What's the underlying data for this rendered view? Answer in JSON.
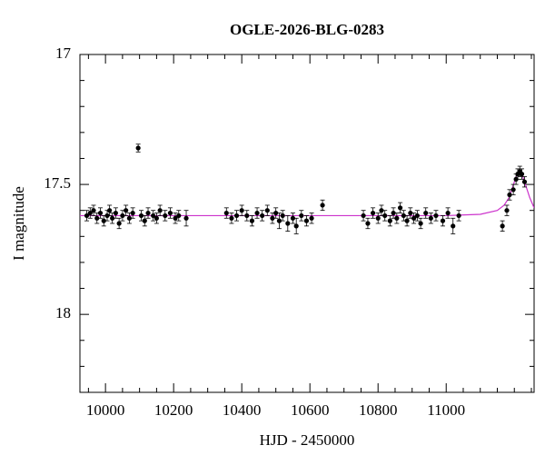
{
  "chart_data": {
    "type": "scatter",
    "title": "OGLE-2026-BLG-0283",
    "xlabel": "HJD - 2450000",
    "ylabel": "I magnitude",
    "xlim": [
      9925,
      11258
    ],
    "ylim": [
      18.3,
      17
    ],
    "xticks": [
      10000,
      10200,
      10400,
      10600,
      10800,
      11000
    ],
    "xticks_minor": [
      9950,
      10050,
      10100,
      10150,
      10250,
      10300,
      10350,
      10450,
      10500,
      10550,
      10650,
      10700,
      10750,
      10850,
      10900,
      10950,
      11050,
      11100,
      11150,
      11200,
      11250
    ],
    "yticks": [
      17,
      17.5,
      18
    ],
    "yticks_minor": [
      17.1,
      17.2,
      17.3,
      17.4,
      17.6,
      17.7,
      17.8,
      17.9,
      18.1,
      18.2
    ],
    "points": {
      "color": "#000000",
      "x": [
        9945,
        9955,
        9965,
        9975,
        9985,
        9995,
        10005,
        10012,
        10020,
        10030,
        10040,
        10050,
        10060,
        10070,
        10080,
        10096,
        10105,
        10115,
        10125,
        10140,
        10150,
        10160,
        10175,
        10190,
        10205,
        10215,
        10237,
        10355,
        10370,
        10385,
        10400,
        10415,
        10430,
        10445,
        10460,
        10475,
        10490,
        10500,
        10510,
        10520,
        10535,
        10550,
        10560,
        10575,
        10590,
        10605,
        10637,
        10757,
        10770,
        10785,
        10800,
        10810,
        10820,
        10835,
        10845,
        10855,
        10865,
        10875,
        10885,
        10895,
        10905,
        10915,
        10925,
        10940,
        10955,
        10970,
        10990,
        11005,
        11020,
        11037,
        11165,
        11178,
        11186,
        11197,
        11205,
        11210,
        11216,
        11222,
        11230
      ],
      "values": [
        17.62,
        17.61,
        17.6,
        17.63,
        17.61,
        17.64,
        17.62,
        17.6,
        17.63,
        17.61,
        17.65,
        17.62,
        17.6,
        17.63,
        17.61,
        17.36,
        17.62,
        17.64,
        17.61,
        17.62,
        17.63,
        17.6,
        17.62,
        17.61,
        17.63,
        17.62,
        17.63,
        17.61,
        17.63,
        17.62,
        17.6,
        17.62,
        17.64,
        17.61,
        17.62,
        17.6,
        17.63,
        17.61,
        17.64,
        17.62,
        17.65,
        17.63,
        17.66,
        17.62,
        17.64,
        17.63,
        17.58,
        17.62,
        17.65,
        17.61,
        17.63,
        17.6,
        17.62,
        17.64,
        17.61,
        17.63,
        17.59,
        17.62,
        17.64,
        17.61,
        17.63,
        17.62,
        17.65,
        17.61,
        17.63,
        17.62,
        17.64,
        17.61,
        17.66,
        17.62,
        17.66,
        17.6,
        17.54,
        17.52,
        17.48,
        17.46,
        17.45,
        17.46,
        17.49
      ],
      "errors": [
        0.02,
        0.02,
        0.02,
        0.02,
        0.02,
        0.02,
        0.02,
        0.02,
        0.02,
        0.02,
        0.02,
        0.02,
        0.02,
        0.02,
        0.02,
        0.015,
        0.02,
        0.02,
        0.02,
        0.02,
        0.02,
        0.02,
        0.02,
        0.02,
        0.02,
        0.02,
        0.03,
        0.02,
        0.02,
        0.02,
        0.02,
        0.02,
        0.02,
        0.02,
        0.02,
        0.02,
        0.02,
        0.02,
        0.03,
        0.02,
        0.03,
        0.02,
        0.03,
        0.02,
        0.02,
        0.02,
        0.02,
        0.02,
        0.02,
        0.02,
        0.02,
        0.02,
        0.02,
        0.02,
        0.02,
        0.02,
        0.02,
        0.02,
        0.02,
        0.02,
        0.02,
        0.02,
        0.02,
        0.02,
        0.02,
        0.02,
        0.02,
        0.02,
        0.03,
        0.02,
        0.02,
        0.02,
        0.02,
        0.02,
        0.02,
        0.02,
        0.02,
        0.02,
        0.02
      ]
    },
    "model": {
      "color": "#cc33cc",
      "x": [
        9925,
        11000,
        11100,
        11150,
        11170,
        11185,
        11195,
        11205,
        11215,
        11225,
        11235,
        11245,
        11258
      ],
      "values": [
        17.62,
        17.62,
        17.615,
        17.6,
        17.58,
        17.55,
        17.51,
        17.47,
        17.45,
        17.47,
        17.51,
        17.55,
        17.59
      ]
    }
  }
}
